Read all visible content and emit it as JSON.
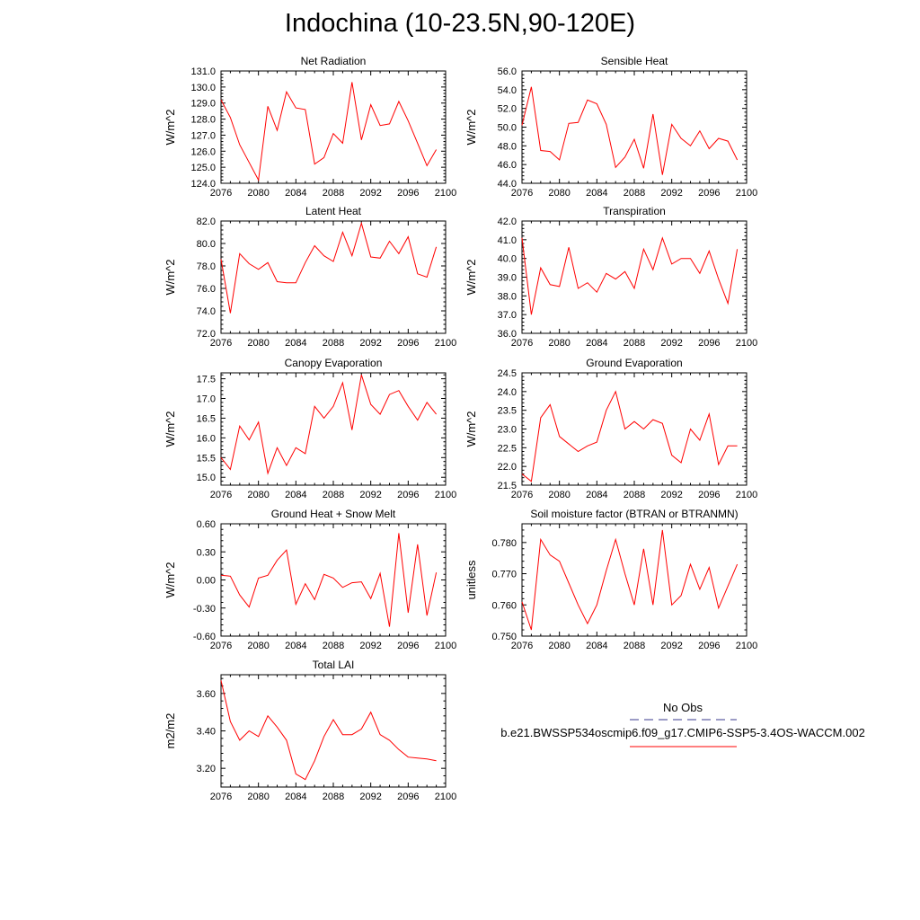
{
  "title": "Indochina (10-23.5N,90-120E)",
  "legend": {
    "obs_label": "No Obs",
    "model_label": "b.e21.BWSSP534oscmip6.f09_g17.CMIP6-SSP5-3.4OS-WACCM.002",
    "obs_color": "#3a3a8c",
    "model_color": "#ff0000"
  },
  "chart_data": [
    {
      "type": "line",
      "title": "Net Radiation",
      "ylabel": "W/m^2",
      "xlim": [
        2076,
        2100
      ],
      "ylim": [
        124.0,
        131.0
      ],
      "xticks": [
        2076,
        2080,
        2084,
        2088,
        2092,
        2096,
        2100
      ],
      "yticks": [
        "124.0",
        "125.0",
        "126.0",
        "127.0",
        "128.0",
        "129.0",
        "130.0",
        "131.0"
      ],
      "x": [
        2076,
        2077,
        2078,
        2079,
        2080,
        2081,
        2082,
        2083,
        2084,
        2085,
        2086,
        2087,
        2088,
        2089,
        2090,
        2091,
        2092,
        2093,
        2094,
        2095,
        2096,
        2097,
        2098,
        2099
      ],
      "values": [
        129.2,
        128.1,
        126.4,
        125.3,
        124.2,
        128.8,
        127.3,
        129.7,
        128.7,
        128.6,
        125.2,
        125.6,
        127.1,
        126.5,
        130.3,
        126.7,
        128.9,
        127.6,
        127.7,
        129.1,
        127.9,
        126.5,
        125.1,
        126.1
      ]
    },
    {
      "type": "line",
      "title": "Sensible Heat",
      "ylabel": "W/m^2",
      "xlim": [
        2076,
        2100
      ],
      "ylim": [
        44.0,
        56.0
      ],
      "xticks": [
        2076,
        2080,
        2084,
        2088,
        2092,
        2096,
        2100
      ],
      "yticks": [
        "44.0",
        "46.0",
        "48.0",
        "50.0",
        "52.0",
        "54.0",
        "56.0"
      ],
      "x": [
        2076,
        2077,
        2078,
        2079,
        2080,
        2081,
        2082,
        2083,
        2084,
        2085,
        2086,
        2087,
        2088,
        2089,
        2090,
        2091,
        2092,
        2093,
        2094,
        2095,
        2096,
        2097,
        2098,
        2099
      ],
      "values": [
        50.2,
        54.3,
        47.5,
        47.4,
        46.5,
        50.4,
        50.5,
        52.9,
        52.5,
        50.3,
        45.7,
        46.8,
        48.7,
        45.6,
        51.4,
        44.9,
        50.3,
        48.8,
        48.0,
        49.6,
        47.7,
        48.8,
        48.5,
        46.5
      ]
    },
    {
      "type": "line",
      "title": "Latent Heat",
      "ylabel": "W/m^2",
      "xlim": [
        2076,
        2100
      ],
      "ylim": [
        72.0,
        82.0
      ],
      "xticks": [
        2076,
        2080,
        2084,
        2088,
        2092,
        2096,
        2100
      ],
      "yticks": [
        "72.0",
        "74.0",
        "76.0",
        "78.0",
        "80.0",
        "82.0"
      ],
      "x": [
        2076,
        2077,
        2078,
        2079,
        2080,
        2081,
        2082,
        2083,
        2084,
        2085,
        2086,
        2087,
        2088,
        2089,
        2090,
        2091,
        2092,
        2093,
        2094,
        2095,
        2096,
        2097,
        2098,
        2099
      ],
      "values": [
        78.6,
        73.8,
        79.1,
        78.2,
        77.7,
        78.3,
        76.6,
        76.5,
        76.5,
        78.3,
        79.8,
        78.9,
        78.4,
        81.0,
        78.9,
        81.8,
        78.8,
        78.7,
        80.2,
        79.1,
        80.6,
        77.3,
        77.0,
        79.7
      ]
    },
    {
      "type": "line",
      "title": "Transpiration",
      "ylabel": "W/m^2",
      "xlim": [
        2076,
        2100
      ],
      "ylim": [
        36.0,
        42.0
      ],
      "xticks": [
        2076,
        2080,
        2084,
        2088,
        2092,
        2096,
        2100
      ],
      "yticks": [
        "36.0",
        "37.0",
        "38.0",
        "39.0",
        "40.0",
        "41.0",
        "42.0"
      ],
      "x": [
        2076,
        2077,
        2078,
        2079,
        2080,
        2081,
        2082,
        2083,
        2084,
        2085,
        2086,
        2087,
        2088,
        2089,
        2090,
        2091,
        2092,
        2093,
        2094,
        2095,
        2096,
        2097,
        2098,
        2099
      ],
      "values": [
        41.1,
        37.0,
        39.5,
        38.6,
        38.5,
        40.6,
        38.4,
        38.7,
        38.2,
        39.2,
        38.9,
        39.3,
        38.4,
        40.5,
        39.4,
        41.1,
        39.7,
        40.0,
        40.0,
        39.2,
        40.4,
        38.9,
        37.6,
        40.5
      ]
    },
    {
      "type": "line",
      "title": "Canopy Evaporation",
      "ylabel": "W/m^2",
      "xlim": [
        2076,
        2100
      ],
      "ylim": [
        14.8,
        17.65
      ],
      "xticks": [
        2076,
        2080,
        2084,
        2088,
        2092,
        2096,
        2100
      ],
      "yticks": [
        "15.0",
        "15.5",
        "16.0",
        "16.5",
        "17.0",
        "17.5"
      ],
      "x": [
        2076,
        2077,
        2078,
        2079,
        2080,
        2081,
        2082,
        2083,
        2084,
        2085,
        2086,
        2087,
        2088,
        2089,
        2090,
        2091,
        2092,
        2093,
        2094,
        2095,
        2096,
        2097,
        2098,
        2099
      ],
      "values": [
        15.5,
        15.2,
        16.3,
        15.95,
        16.4,
        15.1,
        15.75,
        15.3,
        15.75,
        15.6,
        16.8,
        16.5,
        16.8,
        17.4,
        16.2,
        17.6,
        16.85,
        16.6,
        17.1,
        17.2,
        16.8,
        16.45,
        16.9,
        16.6
      ]
    },
    {
      "type": "line",
      "title": "Ground Evaporation",
      "ylabel": "W/m^2",
      "xlim": [
        2076,
        2100
      ],
      "ylim": [
        21.5,
        24.5
      ],
      "xticks": [
        2076,
        2080,
        2084,
        2088,
        2092,
        2096,
        2100
      ],
      "yticks": [
        "21.5",
        "22.0",
        "22.5",
        "23.0",
        "23.5",
        "24.0",
        "24.5"
      ],
      "x": [
        2076,
        2077,
        2078,
        2079,
        2080,
        2081,
        2082,
        2083,
        2084,
        2085,
        2086,
        2087,
        2088,
        2089,
        2090,
        2091,
        2092,
        2093,
        2094,
        2095,
        2096,
        2097,
        2098,
        2099
      ],
      "values": [
        21.8,
        21.6,
        23.3,
        23.65,
        22.8,
        22.6,
        22.4,
        22.55,
        22.65,
        23.5,
        24.0,
        23.0,
        23.2,
        23.0,
        23.25,
        23.15,
        22.3,
        22.1,
        23.0,
        22.7,
        23.4,
        22.05,
        22.55,
        22.55
      ]
    },
    {
      "type": "line",
      "title": "Ground Heat + Snow Melt",
      "ylabel": "W/m^2",
      "xlim": [
        2076,
        2100
      ],
      "ylim": [
        -0.6,
        0.6
      ],
      "xticks": [
        2076,
        2080,
        2084,
        2088,
        2092,
        2096,
        2100
      ],
      "yticks": [
        "-0.60",
        "-0.30",
        "0.00",
        "0.30",
        "0.60"
      ],
      "x": [
        2076,
        2077,
        2078,
        2079,
        2080,
        2081,
        2082,
        2083,
        2084,
        2085,
        2086,
        2087,
        2088,
        2089,
        2090,
        2091,
        2092,
        2093,
        2094,
        2095,
        2096,
        2097,
        2098,
        2099
      ],
      "values": [
        0.05,
        0.04,
        -0.16,
        -0.29,
        0.02,
        0.05,
        0.21,
        0.32,
        -0.26,
        -0.04,
        -0.21,
        0.06,
        0.02,
        -0.08,
        -0.03,
        -0.02,
        -0.2,
        0.07,
        -0.5,
        0.5,
        -0.35,
        0.38,
        -0.38,
        0.08
      ]
    },
    {
      "type": "line",
      "title": "Soil moisture factor (BTRAN or BTRANMN)",
      "ylabel": "unitless",
      "xlim": [
        2076,
        2100
      ],
      "ylim": [
        0.75,
        0.786
      ],
      "xticks": [
        2076,
        2080,
        2084,
        2088,
        2092,
        2096,
        2100
      ],
      "yticks": [
        "0.750",
        "0.760",
        "0.770",
        "0.780"
      ],
      "x": [
        2076,
        2077,
        2078,
        2079,
        2080,
        2081,
        2082,
        2083,
        2084,
        2085,
        2086,
        2087,
        2088,
        2089,
        2090,
        2091,
        2092,
        2093,
        2094,
        2095,
        2096,
        2097,
        2098,
        2099
      ],
      "values": [
        0.761,
        0.752,
        0.781,
        0.776,
        0.774,
        0.767,
        0.76,
        0.754,
        0.76,
        0.771,
        0.781,
        0.77,
        0.76,
        0.778,
        0.76,
        0.784,
        0.76,
        0.763,
        0.773,
        0.765,
        0.772,
        0.759,
        0.766,
        0.773
      ]
    },
    {
      "type": "line",
      "title": "Total LAI",
      "ylabel": "m2/m2",
      "xlim": [
        2076,
        2100
      ],
      "ylim": [
        3.1,
        3.7
      ],
      "xticks": [
        2076,
        2080,
        2084,
        2088,
        2092,
        2096,
        2100
      ],
      "yticks": [
        "3.20",
        "3.40",
        "3.60"
      ],
      "x": [
        2076,
        2077,
        2078,
        2079,
        2080,
        2081,
        2082,
        2083,
        2084,
        2085,
        2086,
        2087,
        2088,
        2089,
        2090,
        2091,
        2092,
        2093,
        2094,
        2095,
        2096,
        2097,
        2098,
        2099
      ],
      "values": [
        3.67,
        3.45,
        3.35,
        3.4,
        3.37,
        3.48,
        3.42,
        3.35,
        3.17,
        3.14,
        3.24,
        3.37,
        3.46,
        3.38,
        3.38,
        3.41,
        3.5,
        3.38,
        3.35,
        3.3,
        3.26,
        3.255,
        3.25,
        3.24
      ]
    }
  ]
}
